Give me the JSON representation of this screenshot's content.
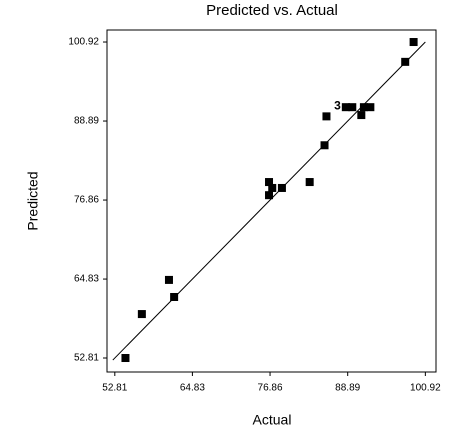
{
  "chart_data": {
    "type": "scatter",
    "title": "Predicted vs. Actual",
    "x_label": "Actual",
    "y_label": "Predicted",
    "x": [
      54.46,
      57.0,
      61.2,
      62.0,
      76.7,
      76.7,
      77.2,
      78.7,
      83.0,
      85.3,
      85.6,
      88.6,
      89.6,
      91.0,
      91.4,
      92.4,
      97.8,
      99.1
    ],
    "values": [
      52.81,
      59.5,
      64.7,
      62.1,
      79.6,
      77.6,
      78.7,
      78.7,
      79.6,
      85.2,
      89.6,
      91.0,
      91.0,
      89.8,
      91.0,
      91.0,
      97.9,
      100.92
    ],
    "color": "#000000",
    "line": {
      "x": [
        52.5,
        100.92
      ],
      "values": [
        52.5,
        100.92
      ]
    },
    "annotations": [
      {
        "text": "3",
        "x": 87.3,
        "y": 91.1
      }
    ],
    "xlim": [
      51.6,
      102.57
    ],
    "ylim": [
      50.68,
      102.75
    ],
    "xticks": [
      52.81,
      64.83,
      76.86,
      88.89,
      100.92
    ],
    "yticks": [
      52.81,
      64.83,
      76.86,
      88.89,
      100.92
    ]
  }
}
